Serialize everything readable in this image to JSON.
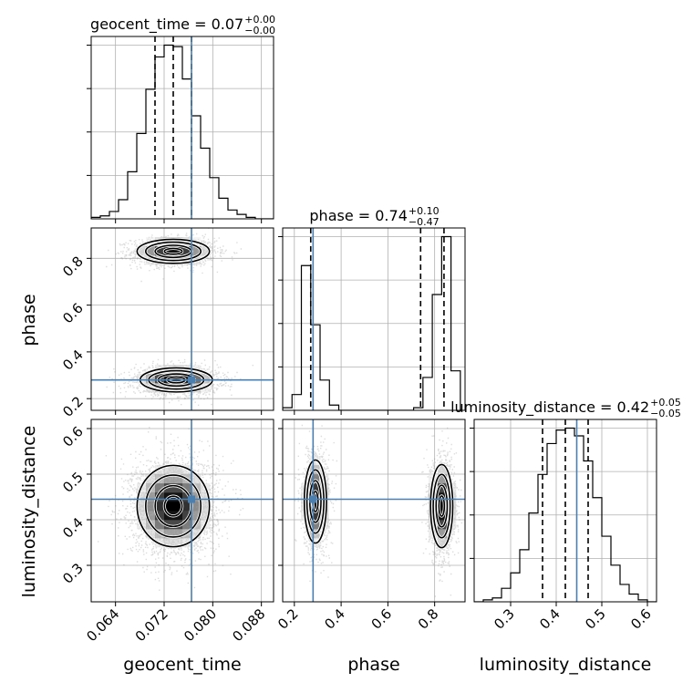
{
  "chart_data": {
    "type": "corner",
    "parameters": [
      "geocent_time",
      "phase",
      "luminosity_distance"
    ],
    "truth": {
      "geocent_time": 0.0765,
      "phase": 0.28,
      "luminosity_distance": 0.445
    },
    "colors": {
      "truth": "#4a7fb0",
      "hist": "#000000",
      "quantile": "#000000",
      "grid": "#b0b0b0"
    },
    "grid": true,
    "titles": {
      "geocent_time": {
        "text": "geocent_time = 0.07",
        "sup": "+0.00",
        "sub": "−0.00"
      },
      "phase": {
        "text": "phase = 0.74",
        "sup": "+0.10",
        "sub": "−0.47"
      },
      "luminosity_distance": {
        "text": "luminosity_distance = 0.42",
        "sup": "+0.05",
        "sub": "−0.05"
      }
    },
    "axes": {
      "geocent_time": {
        "label": "geocent_time",
        "range": [
          0.06,
          0.09
        ],
        "ticks": [
          0.064,
          0.072,
          0.08,
          0.088
        ],
        "tick_labels": [
          "0.064",
          "0.072",
          "0.080",
          "0.088"
        ]
      },
      "phase": {
        "label": "phase",
        "range": [
          0.15,
          0.93
        ],
        "ticks": [
          0.2,
          0.4,
          0.6,
          0.8
        ],
        "tick_labels": [
          "0.2",
          "0.4",
          "0.6",
          "0.8"
        ]
      },
      "luminosity_distance": {
        "label": "luminosity_distance",
        "range": [
          0.22,
          0.62
        ],
        "ticks": [
          0.3,
          0.4,
          0.5,
          0.6
        ],
        "tick_labels": [
          "0.3",
          "0.4",
          "0.5",
          "0.6"
        ]
      }
    },
    "histograms": {
      "geocent_time": {
        "edges": [
          0.06,
          0.0615,
          0.063,
          0.0645,
          0.066,
          0.0675,
          0.069,
          0.0705,
          0.072,
          0.0735,
          0.075,
          0.0765,
          0.078,
          0.0795,
          0.081,
          0.0825,
          0.084,
          0.0855,
          0.087,
          0.0885,
          0.09
        ],
        "counts": [
          1,
          2,
          5,
          13,
          32,
          58,
          88,
          110,
          118,
          117,
          95,
          70,
          48,
          28,
          14,
          6,
          3,
          1,
          0,
          0
        ],
        "quantiles": [
          0.0705,
          0.0735,
          0.0765
        ]
      },
      "phase": {
        "edges": [
          0.15,
          0.19,
          0.23,
          0.27,
          0.31,
          0.35,
          0.39,
          0.43,
          0.47,
          0.51,
          0.55,
          0.59,
          0.63,
          0.67,
          0.71,
          0.75,
          0.79,
          0.83,
          0.87,
          0.91
        ],
        "counts": [
          2,
          12,
          110,
          65,
          23,
          4,
          0,
          0,
          0,
          0,
          0,
          0,
          0,
          0,
          2,
          25,
          88,
          132,
          30
        ],
        "quantiles": [
          0.27,
          0.74,
          0.84
        ]
      },
      "luminosity_distance": {
        "edges": [
          0.22,
          0.24,
          0.26,
          0.28,
          0.3,
          0.32,
          0.34,
          0.36,
          0.38,
          0.4,
          0.42,
          0.44,
          0.46,
          0.48,
          0.5,
          0.52,
          0.54,
          0.56,
          0.58,
          0.6,
          0.62
        ],
        "counts": [
          0,
          1,
          2,
          7,
          15,
          27,
          46,
          66,
          82,
          89,
          90,
          86,
          73,
          54,
          34,
          19,
          9,
          4,
          1,
          0
        ],
        "quantiles": [
          0.37,
          0.42,
          0.47
        ]
      }
    },
    "densities": {
      "phase_vs_geocent_time": [
        {
          "cx": 0.0735,
          "cy": 0.83,
          "sx": 0.003,
          "sy": 0.026,
          "w": 0.48
        },
        {
          "cx": 0.074,
          "cy": 0.28,
          "sx": 0.003,
          "sy": 0.026,
          "w": 0.52
        }
      ],
      "luminosity_distance_vs_geocent_time": [
        {
          "cx": 0.0735,
          "cy": 0.43,
          "sx": 0.003,
          "sy": 0.045,
          "w": 1.0
        }
      ],
      "luminosity_distance_vs_phase": [
        {
          "cx": 0.29,
          "cy": 0.44,
          "sx": 0.024,
          "sy": 0.046,
          "w": 0.48
        },
        {
          "cx": 0.83,
          "cy": 0.43,
          "sx": 0.024,
          "sy": 0.046,
          "w": 0.52
        }
      ]
    },
    "contour_levels": [
      0.11,
      0.39,
      0.68,
      0.86
    ]
  }
}
